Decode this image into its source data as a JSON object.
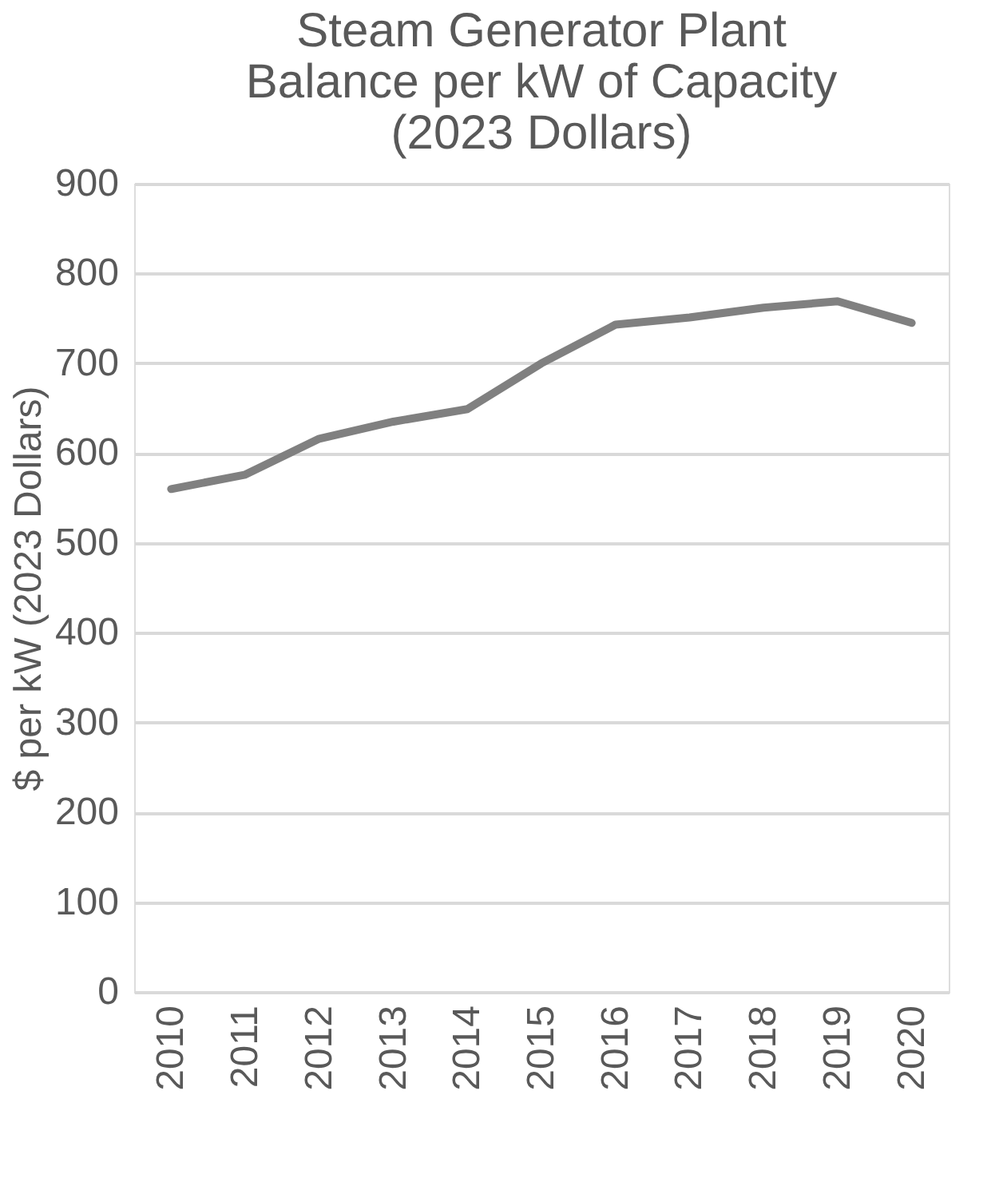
{
  "chart_data": {
    "type": "line",
    "title": "Steam Generator Plant Balance per kW of Capacity (2023 Dollars)",
    "ylabel": "$ per kW (2023 Dollars)",
    "categories": [
      "2010",
      "2011",
      "2012",
      "2013",
      "2014",
      "2015",
      "2016",
      "2017",
      "2018",
      "2019",
      "2020"
    ],
    "series": [
      {
        "color": "#808080",
        "values": [
          560,
          576,
          616,
          635,
          649,
          700,
          743,
          751,
          762,
          769,
          745
        ]
      }
    ],
    "ylim": [
      0,
      900
    ],
    "yticks": [
      0,
      100,
      200,
      300,
      400,
      500,
      600,
      700,
      800,
      900
    ],
    "grid": "y",
    "marker": "none",
    "line_style": "solid"
  }
}
